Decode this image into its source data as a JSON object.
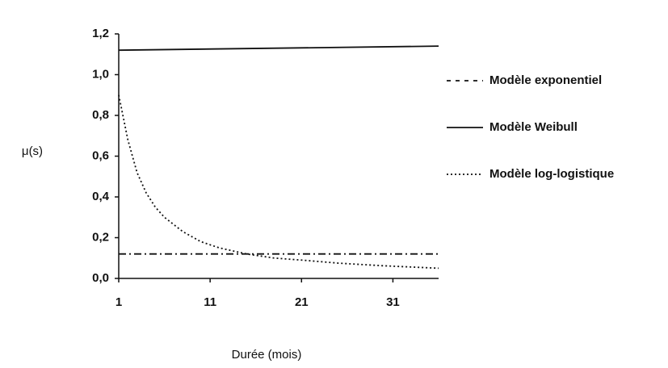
{
  "chart_data": {
    "type": "line",
    "x_label": "Durée (mois)",
    "y_label": "μ(s)",
    "xlim": [
      1,
      36
    ],
    "ylim": [
      0,
      1.2
    ],
    "xticks": [
      1,
      11,
      21,
      31
    ],
    "yticks": [
      {
        "value": 0,
        "label": "0,0"
      },
      {
        "value": 0.2,
        "label": "0,2"
      },
      {
        "value": 0.4,
        "label": "0,4"
      },
      {
        "value": 0.6,
        "label": "0,6"
      },
      {
        "value": 0.8,
        "label": "0,8"
      },
      {
        "value": 1.0,
        "label": "1,0"
      },
      {
        "value": 1.2,
        "label": "1,2"
      }
    ],
    "legend": "right",
    "series": [
      {
        "name": "Modèle exponentiel",
        "color": "#111111",
        "style": "dashdot",
        "x": [
          1,
          36
        ],
        "values": [
          0.12,
          0.12
        ]
      },
      {
        "name": "Modèle Weibull",
        "color": "#111111",
        "style": "solid",
        "x": [
          1,
          36
        ],
        "values": [
          1.12,
          1.14
        ]
      },
      {
        "name": "Modèle log-logistique",
        "color": "#111111",
        "style": "dotted",
        "x": [
          1,
          2,
          3,
          4,
          5,
          6,
          8,
          10,
          12,
          15,
          18,
          21,
          25,
          30,
          36
        ],
        "values": [
          0.9,
          0.68,
          0.52,
          0.42,
          0.35,
          0.3,
          0.23,
          0.18,
          0.15,
          0.12,
          0.1,
          0.09,
          0.075,
          0.062,
          0.05
        ]
      }
    ]
  }
}
